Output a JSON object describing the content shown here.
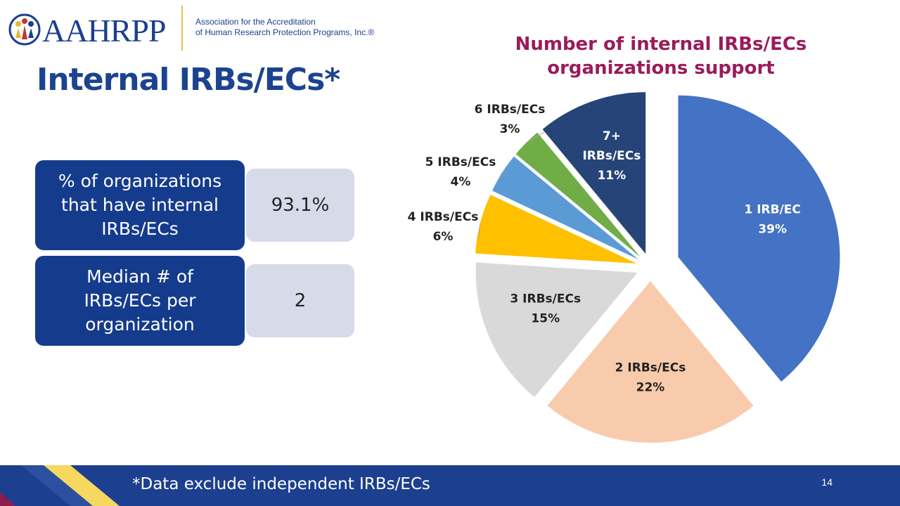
{
  "header": {
    "logo_text": "AAHRPP",
    "logo_sub_line1": "Association for the Accreditation",
    "logo_sub_line2": "of Human Research Protection Programs, Inc.®"
  },
  "slide_title": "Internal IRBs/ECs*",
  "stats": [
    {
      "label": "% of organizations that have internal IRBs/ECs",
      "value": "93.1%"
    },
    {
      "label": "Median # of IRBs/ECs per organization",
      "value": "2"
    }
  ],
  "footer": {
    "note": "*Data exclude independent IRBs/ECs",
    "page_number": "14"
  },
  "colors": {
    "brand_blue": "#1b4390",
    "chart_title": "#9b1b5a",
    "footer": "#1d3f8f"
  },
  "chart_data": {
    "type": "pie",
    "title": "Number of internal IRBs/ECs organizations support",
    "slices": [
      {
        "label": "1 IRB/EC",
        "value": 39,
        "display": "39%",
        "color": "#4472c4"
      },
      {
        "label": "2 IRBs/ECs",
        "value": 22,
        "display": "22%",
        "color": "#f8cbad"
      },
      {
        "label": "3 IRBs/ECs",
        "value": 15,
        "display": "15%",
        "color": "#d9d9d9"
      },
      {
        "label": "4 IRBs/ECs",
        "value": 6,
        "display": "6%",
        "color": "#ffc000"
      },
      {
        "label": "5 IRBs/ECs",
        "value": 4,
        "display": "4%",
        "color": "#5b9bd5"
      },
      {
        "label": "6 IRBs/ECs",
        "value": 3,
        "display": "3%",
        "color": "#70ad47"
      },
      {
        "label": "7+ IRBs/ECs",
        "value": 11,
        "display": "11%",
        "color": "#264478"
      }
    ]
  }
}
